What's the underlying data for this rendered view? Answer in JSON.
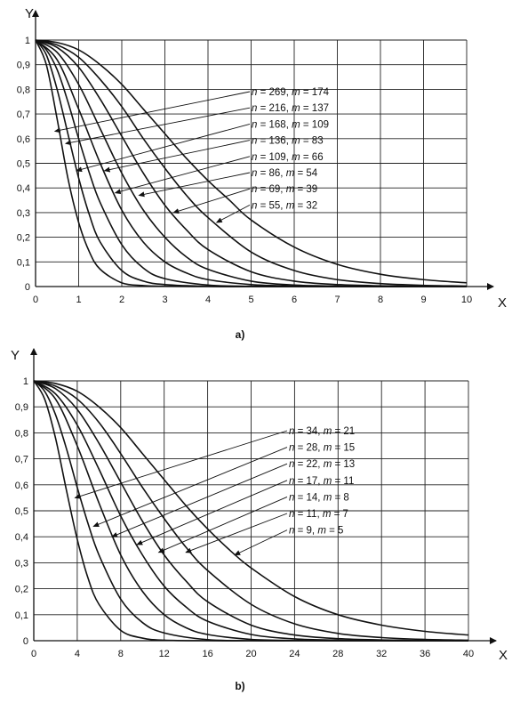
{
  "chart_data": [
    {
      "type": "line",
      "panel_label": "a)",
      "xlabel": "X",
      "ylabel": "Y",
      "xlim": [
        0,
        10
      ],
      "ylim": [
        0,
        1
      ],
      "grid": true,
      "x_ticks": [
        "0",
        "1",
        "2",
        "3",
        "4",
        "5",
        "6",
        "7",
        "8",
        "9",
        "10"
      ],
      "y_ticks": [
        "0",
        "0,1",
        "0,2",
        "0,3",
        "0,4",
        "0,5",
        "0,6",
        "0,7",
        "0,8",
        "0,9",
        "1"
      ],
      "x_ticks_num": [
        0,
        1,
        2,
        3,
        4,
        5,
        6,
        7,
        8,
        9,
        10
      ],
      "y_ticks_num": [
        0,
        0.1,
        0.2,
        0.3,
        0.4,
        0.5,
        0.6,
        0.7,
        0.8,
        0.9,
        1
      ],
      "series": [
        {
          "name": "n = 269, m = 174",
          "n_text": "n",
          "n_val": " = 269, ",
          "m_text": "m",
          "m_val": " = 174",
          "x": [
            0,
            0.25,
            0.5,
            0.75,
            1,
            1.25,
            1.5,
            2,
            2.5,
            3,
            4,
            5,
            6,
            7,
            8,
            9,
            10
          ],
          "y": [
            1,
            0.9,
            0.68,
            0.44,
            0.26,
            0.14,
            0.07,
            0.015,
            0.004,
            0.001,
            0,
            0,
            0,
            0,
            0,
            0,
            0
          ],
          "arrow_to": [
            0.45,
            0.63
          ]
        },
        {
          "name": "n = 216, m = 137",
          "n_text": "n",
          "n_val": " = 216, ",
          "m_text": "m",
          "m_val": " = 137",
          "x": [
            0,
            0.25,
            0.5,
            0.75,
            1,
            1.25,
            1.5,
            2,
            2.5,
            3,
            4,
            5,
            6,
            7,
            8,
            9,
            10
          ],
          "y": [
            1,
            0.94,
            0.8,
            0.62,
            0.44,
            0.29,
            0.18,
            0.065,
            0.022,
            0.008,
            0.001,
            0,
            0,
            0,
            0,
            0,
            0
          ],
          "arrow_to": [
            0.7,
            0.58
          ]
        },
        {
          "name": "n = 168, m = 109",
          "n_text": "n",
          "n_val": " = 168, ",
          "m_text": "m",
          "m_val": " = 109",
          "x": [
            0,
            0.25,
            0.5,
            0.75,
            1,
            1.25,
            1.5,
            2,
            2.5,
            3,
            4,
            5,
            6,
            7,
            8,
            9,
            10
          ],
          "y": [
            1,
            0.96,
            0.88,
            0.75,
            0.6,
            0.46,
            0.34,
            0.17,
            0.075,
            0.032,
            0.006,
            0.001,
            0,
            0,
            0,
            0,
            0
          ],
          "arrow_to": [
            0.95,
            0.47
          ]
        },
        {
          "name": "n = 136, m = 83",
          "n_text": "n",
          "n_val": " = 136, ",
          "m_text": "m",
          "m_val": " = 83",
          "x": [
            0,
            0.5,
            1,
            1.5,
            2,
            2.5,
            3,
            3.5,
            4,
            5,
            6,
            7,
            8,
            9,
            10
          ],
          "y": [
            1,
            0.92,
            0.72,
            0.5,
            0.31,
            0.18,
            0.1,
            0.055,
            0.028,
            0.008,
            0.002,
            0,
            0,
            0,
            0
          ],
          "arrow_to": [
            1.6,
            0.47
          ]
        },
        {
          "name": "n = 109, m = 66",
          "n_text": "n",
          "n_val": " = 109, ",
          "m_text": "m",
          "m_val": " = 66",
          "x": [
            0,
            0.5,
            1,
            1.5,
            2,
            2.5,
            3,
            3.5,
            4,
            5,
            6,
            7,
            8,
            9,
            10
          ],
          "y": [
            1,
            0.95,
            0.82,
            0.64,
            0.46,
            0.31,
            0.2,
            0.12,
            0.07,
            0.022,
            0.006,
            0.002,
            0,
            0,
            0
          ],
          "arrow_to": [
            1.85,
            0.38
          ]
        },
        {
          "name": "n = 86, m = 54",
          "n_text": "n",
          "n_val": " = 86, ",
          "m_text": "m",
          "m_val": " = 54",
          "x": [
            0,
            0.5,
            1,
            1.5,
            2,
            2.5,
            3,
            3.5,
            4,
            5,
            6,
            7,
            8,
            9,
            10
          ],
          "y": [
            1,
            0.97,
            0.89,
            0.76,
            0.61,
            0.46,
            0.33,
            0.23,
            0.15,
            0.06,
            0.022,
            0.008,
            0.003,
            0.001,
            0
          ],
          "arrow_to": [
            2.4,
            0.37
          ]
        },
        {
          "name": "n = 69, m = 39",
          "n_text": "n",
          "n_val": " = 69, ",
          "m_text": "m",
          "m_val": " = 39",
          "x": [
            0,
            0.5,
            1,
            1.5,
            2,
            2.5,
            3,
            3.5,
            4,
            5,
            6,
            7,
            8,
            9,
            10
          ],
          "y": [
            1,
            0.98,
            0.93,
            0.84,
            0.73,
            0.6,
            0.48,
            0.37,
            0.28,
            0.14,
            0.065,
            0.028,
            0.012,
            0.005,
            0.002
          ],
          "arrow_to": [
            3.2,
            0.3
          ]
        },
        {
          "name": "n = 55, m = 32",
          "n_text": "n",
          "n_val": " = 55, ",
          "m_text": "m",
          "m_val": " = 32",
          "x": [
            0,
            0.5,
            1,
            1.5,
            2,
            2.5,
            3,
            3.5,
            4,
            4.5,
            5,
            6,
            7,
            8,
            9,
            10
          ],
          "y": [
            1,
            0.99,
            0.96,
            0.9,
            0.82,
            0.72,
            0.62,
            0.52,
            0.43,
            0.35,
            0.27,
            0.16,
            0.09,
            0.05,
            0.028,
            0.015
          ],
          "arrow_to": [
            4.2,
            0.26
          ]
        }
      ]
    },
    {
      "type": "line",
      "panel_label": "b)",
      "xlabel": "X",
      "ylabel": "Y",
      "xlim": [
        0,
        40
      ],
      "ylim": [
        0,
        1
      ],
      "grid": true,
      "x_ticks": [
        "0",
        "4",
        "8",
        "12",
        "16",
        "20",
        "24",
        "28",
        "32",
        "36",
        "40"
      ],
      "y_ticks": [
        "0",
        "0,1",
        "0,2",
        "0,3",
        "0,4",
        "0,5",
        "0,6",
        "0,7",
        "0,8",
        "0,9",
        "1"
      ],
      "x_ticks_num": [
        0,
        4,
        8,
        12,
        16,
        20,
        24,
        28,
        32,
        36,
        40
      ],
      "y_ticks_num": [
        0,
        0.1,
        0.2,
        0.3,
        0.4,
        0.5,
        0.6,
        0.7,
        0.8,
        0.9,
        1
      ],
      "series": [
        {
          "name": "n = 34, m = 21",
          "n_text": "n",
          "n_val": " = 34, ",
          "m_text": "m",
          "m_val": " = 21",
          "x": [
            0,
            1,
            2,
            3,
            4,
            5,
            6,
            8,
            10,
            12,
            16,
            20,
            24,
            28,
            32,
            36,
            40
          ],
          "y": [
            1,
            0.93,
            0.78,
            0.58,
            0.39,
            0.24,
            0.14,
            0.04,
            0.01,
            0.002,
            0,
            0,
            0,
            0,
            0,
            0,
            0
          ],
          "arrow_to": [
            3.8,
            0.55
          ]
        },
        {
          "name": "n = 28, m = 15",
          "n_text": "n",
          "n_val": " = 28, ",
          "m_text": "m",
          "m_val": " = 15",
          "x": [
            0,
            1,
            2,
            3,
            4,
            5,
            6,
            8,
            10,
            12,
            16,
            20,
            24,
            28,
            32,
            36,
            40
          ],
          "y": [
            1,
            0.96,
            0.87,
            0.74,
            0.59,
            0.45,
            0.33,
            0.16,
            0.07,
            0.03,
            0.004,
            0,
            0,
            0,
            0,
            0,
            0
          ],
          "arrow_to": [
            5.5,
            0.44
          ]
        },
        {
          "name": "n = 22, m = 13",
          "n_text": "n",
          "n_val": " = 22, ",
          "m_text": "m",
          "m_val": " = 13",
          "x": [
            0,
            2,
            4,
            6,
            8,
            10,
            12,
            14,
            16,
            20,
            24,
            28,
            32,
            36,
            40
          ],
          "y": [
            1,
            0.93,
            0.75,
            0.53,
            0.33,
            0.19,
            0.1,
            0.05,
            0.024,
            0.005,
            0.001,
            0,
            0,
            0,
            0
          ],
          "arrow_to": [
            7.2,
            0.4
          ]
        },
        {
          "name": "n = 17, m = 11",
          "n_text": "n",
          "n_val": " = 17, ",
          "m_text": "m",
          "m_val": " = 11",
          "x": [
            0,
            2,
            4,
            6,
            8,
            10,
            12,
            14,
            16,
            20,
            24,
            28,
            32,
            36,
            40
          ],
          "y": [
            1,
            0.95,
            0.83,
            0.66,
            0.48,
            0.33,
            0.21,
            0.13,
            0.075,
            0.024,
            0.007,
            0.002,
            0,
            0,
            0
          ],
          "arrow_to": [
            9.5,
            0.37
          ]
        },
        {
          "name": "n = 14, m = 8",
          "n_text": "n",
          "n_val": " = 14, ",
          "m_text": "m",
          "m_val": " = 8",
          "x": [
            0,
            2,
            4,
            6,
            8,
            10,
            12,
            14,
            16,
            20,
            24,
            28,
            32,
            36,
            40
          ],
          "y": [
            1,
            0.97,
            0.89,
            0.76,
            0.61,
            0.46,
            0.33,
            0.23,
            0.15,
            0.06,
            0.022,
            0.008,
            0.003,
            0.001,
            0
          ],
          "arrow_to": [
            11.5,
            0.34
          ]
        },
        {
          "name": "n = 11, m = 7",
          "n_text": "n",
          "n_val": " = 11, ",
          "m_text": "m",
          "m_val": " = 7",
          "x": [
            0,
            2,
            4,
            6,
            8,
            10,
            12,
            14,
            16,
            20,
            24,
            28,
            32,
            36,
            40
          ],
          "y": [
            1,
            0.98,
            0.93,
            0.84,
            0.72,
            0.59,
            0.47,
            0.36,
            0.27,
            0.14,
            0.065,
            0.028,
            0.012,
            0.005,
            0.002
          ],
          "arrow_to": [
            14,
            0.34
          ]
        },
        {
          "name": "n = 9, m = 5",
          "n_text": "n",
          "n_val": " = 9, ",
          "m_text": "m",
          "m_val": " = 5",
          "x": [
            0,
            2,
            4,
            6,
            8,
            10,
            12,
            14,
            16,
            18,
            20,
            24,
            28,
            32,
            36,
            40
          ],
          "y": [
            1,
            0.99,
            0.96,
            0.9,
            0.82,
            0.72,
            0.62,
            0.52,
            0.43,
            0.35,
            0.28,
            0.17,
            0.1,
            0.06,
            0.036,
            0.022
          ],
          "arrow_to": [
            18.5,
            0.33
          ]
        }
      ]
    }
  ]
}
